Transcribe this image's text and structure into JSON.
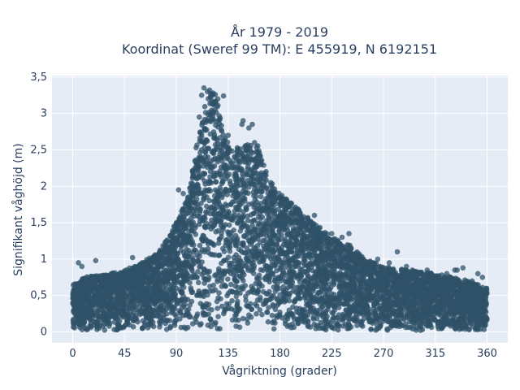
{
  "chart_data": {
    "type": "scatter",
    "title": "År 1979 - 2019",
    "subtitle": "Koordinat (Sweref 99 TM): E 455919, N 6192151",
    "xlabel": "Vågriktning (grader)",
    "ylabel": "Signifikant våghöjd (m)",
    "xlim": [
      -18,
      378
    ],
    "ylim": [
      -0.15,
      3.52
    ],
    "x_ticks": [
      0,
      45,
      90,
      135,
      180,
      225,
      270,
      315,
      360
    ],
    "x_tick_labels": [
      "0",
      "45",
      "90",
      "135",
      "180",
      "225",
      "270",
      "315",
      "360"
    ],
    "y_ticks": [
      0,
      0.5,
      1,
      1.5,
      2,
      2.5,
      3,
      3.5
    ],
    "y_tick_labels": [
      "0",
      "0,5",
      "1",
      "1,5",
      "2",
      "2,5",
      "3",
      "3,5"
    ],
    "grid": true,
    "colors": {
      "marker": "#2f5168",
      "plot_bg": "#e5ecf6",
      "grid": "#ffffff",
      "text": "#2a3f5f"
    },
    "upper_envelope": {
      "x": [
        0,
        10,
        30,
        45,
        60,
        75,
        90,
        100,
        108,
        115,
        120,
        125,
        130,
        140,
        150,
        160,
        170,
        180,
        195,
        210,
        225,
        240,
        255,
        270,
        290,
        315,
        340,
        360
      ],
      "y": [
        0.65,
        0.75,
        0.8,
        0.85,
        0.95,
        1.1,
        1.5,
        1.85,
        2.6,
        3.2,
        3.3,
        3.25,
        2.8,
        2.5,
        2.6,
        2.6,
        2.1,
        1.9,
        1.7,
        1.5,
        1.3,
        1.2,
        1.0,
        0.9,
        0.85,
        0.8,
        0.72,
        0.6
      ]
    },
    "outliers": [
      {
        "x": 5,
        "y": 0.95
      },
      {
        "x": 8,
        "y": 0.9
      },
      {
        "x": 20,
        "y": 0.98
      },
      {
        "x": 52,
        "y": 1.02
      },
      {
        "x": 88,
        "y": 1.45
      },
      {
        "x": 92,
        "y": 1.95
      },
      {
        "x": 96,
        "y": 1.9
      },
      {
        "x": 100,
        "y": 1.85
      },
      {
        "x": 110,
        "y": 2.95
      },
      {
        "x": 112,
        "y": 3.25
      },
      {
        "x": 114,
        "y": 3.35
      },
      {
        "x": 117,
        "y": 3.3
      },
      {
        "x": 119,
        "y": 3.32
      },
      {
        "x": 122,
        "y": 3.28
      },
      {
        "x": 126,
        "y": 3.2
      },
      {
        "x": 131,
        "y": 3.24
      },
      {
        "x": 135,
        "y": 2.7
      },
      {
        "x": 147,
        "y": 2.85
      },
      {
        "x": 148,
        "y": 2.9
      },
      {
        "x": 153,
        "y": 2.8
      },
      {
        "x": 156,
        "y": 2.85
      },
      {
        "x": 158,
        "y": 2.6
      },
      {
        "x": 160,
        "y": 2.4
      },
      {
        "x": 168,
        "y": 2.2
      },
      {
        "x": 172,
        "y": 2.05
      },
      {
        "x": 175,
        "y": 1.9
      },
      {
        "x": 180,
        "y": 1.85
      },
      {
        "x": 188,
        "y": 1.55
      },
      {
        "x": 190,
        "y": 1.6
      },
      {
        "x": 200,
        "y": 1.55
      },
      {
        "x": 210,
        "y": 1.6
      },
      {
        "x": 218,
        "y": 1.35
      },
      {
        "x": 225,
        "y": 1.35
      },
      {
        "x": 234,
        "y": 1.3
      },
      {
        "x": 240,
        "y": 1.35
      },
      {
        "x": 245,
        "y": 1.05
      },
      {
        "x": 265,
        "y": 1.0
      },
      {
        "x": 275,
        "y": 0.95
      },
      {
        "x": 282,
        "y": 1.1
      },
      {
        "x": 290,
        "y": 0.9
      },
      {
        "x": 295,
        "y": 0.85
      },
      {
        "x": 303,
        "y": 0.82
      },
      {
        "x": 308,
        "y": 0.85
      },
      {
        "x": 320,
        "y": 0.72
      },
      {
        "x": 325,
        "y": 0.8
      },
      {
        "x": 332,
        "y": 0.85
      },
      {
        "x": 334,
        "y": 0.85
      },
      {
        "x": 339,
        "y": 0.88
      },
      {
        "x": 347,
        "y": 0.7
      },
      {
        "x": 352,
        "y": 0.8
      },
      {
        "x": 356,
        "y": 0.75
      }
    ]
  }
}
